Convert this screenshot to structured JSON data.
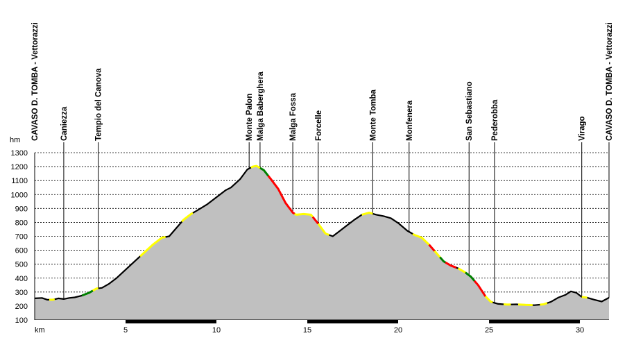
{
  "chart_data": {
    "type": "area",
    "title": "",
    "xlabel": "km",
    "ylabel": "hm",
    "xlim": [
      0,
      31.6
    ],
    "ylim": [
      100,
      1300
    ],
    "grid": "horizontal-dashed",
    "xticks": [
      5,
      10,
      15,
      20,
      25,
      30
    ],
    "yticks": [
      100,
      200,
      300,
      400,
      500,
      600,
      700,
      800,
      900,
      1000,
      1100,
      1200,
      1300
    ],
    "colors": {
      "fill": "#c0c0c0",
      "line": "#000000",
      "yellow": "#ffff00",
      "green": "#008000",
      "red": "#ff0000"
    },
    "profile": [
      [
        0.0,
        255
      ],
      [
        0.4,
        258
      ],
      [
        0.7,
        245
      ],
      [
        1.0,
        245
      ],
      [
        1.3,
        255
      ],
      [
        1.6,
        250
      ],
      [
        1.9,
        258
      ],
      [
        2.2,
        262
      ],
      [
        2.6,
        275
      ],
      [
        3.0,
        295
      ],
      [
        3.4,
        325
      ],
      [
        3.7,
        330
      ],
      [
        4.1,
        360
      ],
      [
        4.5,
        400
      ],
      [
        5.0,
        460
      ],
      [
        5.5,
        520
      ],
      [
        6.0,
        580
      ],
      [
        6.5,
        640
      ],
      [
        7.0,
        690
      ],
      [
        7.4,
        700
      ],
      [
        7.8,
        760
      ],
      [
        8.2,
        820
      ],
      [
        8.6,
        860
      ],
      [
        9.0,
        890
      ],
      [
        9.5,
        930
      ],
      [
        10.0,
        980
      ],
      [
        10.5,
        1030
      ],
      [
        10.8,
        1050
      ],
      [
        11.3,
        1110
      ],
      [
        11.7,
        1180
      ],
      [
        12.0,
        1200
      ],
      [
        12.2,
        1205
      ],
      [
        12.6,
        1175
      ],
      [
        13.0,
        1110
      ],
      [
        13.4,
        1040
      ],
      [
        13.8,
        940
      ],
      [
        14.2,
        870
      ],
      [
        14.4,
        855
      ],
      [
        14.8,
        860
      ],
      [
        15.2,
        855
      ],
      [
        15.6,
        790
      ],
      [
        16.0,
        720
      ],
      [
        16.4,
        700
      ],
      [
        16.8,
        740
      ],
      [
        17.2,
        780
      ],
      [
        17.6,
        820
      ],
      [
        18.0,
        855
      ],
      [
        18.4,
        870
      ],
      [
        18.8,
        855
      ],
      [
        19.2,
        845
      ],
      [
        19.6,
        830
      ],
      [
        20.0,
        795
      ],
      [
        20.5,
        740
      ],
      [
        20.9,
        710
      ],
      [
        21.3,
        690
      ],
      [
        21.7,
        640
      ],
      [
        22.1,
        580
      ],
      [
        22.5,
        520
      ],
      [
        22.9,
        490
      ],
      [
        23.3,
        470
      ],
      [
        23.7,
        440
      ],
      [
        24.0,
        410
      ],
      [
        24.4,
        350
      ],
      [
        24.8,
        270
      ],
      [
        25.1,
        230
      ],
      [
        25.5,
        215
      ],
      [
        26.0,
        210
      ],
      [
        26.5,
        212
      ],
      [
        27.0,
        208
      ],
      [
        27.5,
        206
      ],
      [
        28.0,
        212
      ],
      [
        28.4,
        230
      ],
      [
        28.8,
        260
      ],
      [
        29.2,
        280
      ],
      [
        29.5,
        305
      ],
      [
        29.8,
        295
      ],
      [
        30.1,
        265
      ],
      [
        30.4,
        260
      ],
      [
        30.8,
        245
      ],
      [
        31.2,
        232
      ],
      [
        31.6,
        260
      ]
    ],
    "segments": [
      {
        "color": "yellow",
        "from": 0.8,
        "to": 1.1
      },
      {
        "color": "green",
        "from": 2.6,
        "to": 3.2
      },
      {
        "color": "yellow",
        "from": 3.2,
        "to": 3.5
      },
      {
        "color": "yellow",
        "from": 5.8,
        "to": 7.2
      },
      {
        "color": "yellow",
        "from": 8.1,
        "to": 8.7
      },
      {
        "color": "yellow",
        "from": 11.9,
        "to": 12.4
      },
      {
        "color": "green",
        "from": 12.4,
        "to": 12.85
      },
      {
        "color": "red",
        "from": 12.85,
        "to": 14.3
      },
      {
        "color": "yellow",
        "from": 14.3,
        "to": 15.3
      },
      {
        "color": "red",
        "from": 15.3,
        "to": 15.6
      },
      {
        "color": "yellow",
        "from": 15.6,
        "to": 16.2
      },
      {
        "color": "yellow",
        "from": 18.0,
        "to": 18.6
      },
      {
        "color": "yellow",
        "from": 20.8,
        "to": 21.7
      },
      {
        "color": "red",
        "from": 21.7,
        "to": 22.0
      },
      {
        "color": "yellow",
        "from": 22.0,
        "to": 22.3
      },
      {
        "color": "green",
        "from": 22.3,
        "to": 22.6
      },
      {
        "color": "red",
        "from": 22.6,
        "to": 23.2
      },
      {
        "color": "yellow",
        "from": 23.3,
        "to": 23.7
      },
      {
        "color": "green",
        "from": 23.7,
        "to": 24.2
      },
      {
        "color": "red",
        "from": 24.2,
        "to": 24.8
      },
      {
        "color": "yellow",
        "from": 24.8,
        "to": 25.2
      },
      {
        "color": "yellow",
        "from": 25.8,
        "to": 26.2
      },
      {
        "color": "yellow",
        "from": 26.6,
        "to": 27.4
      },
      {
        "color": "yellow",
        "from": 27.8,
        "to": 28.2
      },
      {
        "color": "yellow",
        "from": 30.1,
        "to": 30.4
      }
    ],
    "waypoints": [
      {
        "label": "CAVASO D. TOMBA - Vettorazzi",
        "km": 0.0,
        "line": false
      },
      {
        "label": "Caniezza",
        "km": 1.6,
        "line": true
      },
      {
        "label": "Tempio del Canova",
        "km": 3.5,
        "line": true
      },
      {
        "label": "Monte Palon",
        "km": 11.8,
        "line": true
      },
      {
        "label": "Malga Baberghera",
        "km": 12.4,
        "line": true
      },
      {
        "label": "Malga Fossa",
        "km": 14.2,
        "line": true
      },
      {
        "label": "Forcelle",
        "km": 15.6,
        "line": true
      },
      {
        "label": "Monte Tomba",
        "km": 18.6,
        "line": true
      },
      {
        "label": "Monfenera",
        "km": 20.6,
        "line": true
      },
      {
        "label": "San Sebastiano",
        "km": 23.9,
        "line": true
      },
      {
        "label": "Pederobba",
        "km": 25.3,
        "line": true
      },
      {
        "label": "Virago",
        "km": 30.1,
        "line": true
      },
      {
        "label": "CAVASO D. TOMBA - Vettorazzi",
        "km": 31.6,
        "line": true
      }
    ]
  }
}
